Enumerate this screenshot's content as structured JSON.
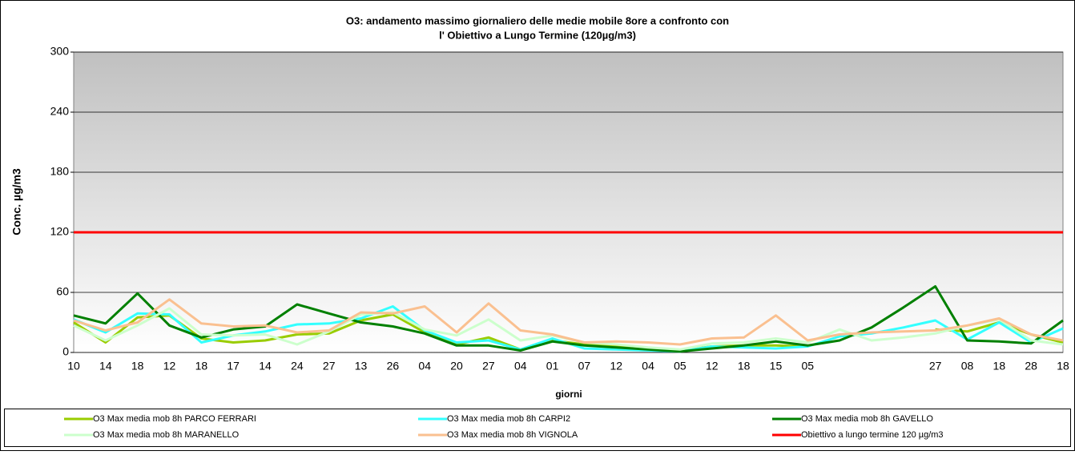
{
  "chart_data": {
    "type": "line",
    "title": [
      "O3: andamento massimo giornaliero delle medie mobile 8ore a confronto con",
      "l' Obiettivo a Lungo Termine  (120µg/m3)"
    ],
    "ylabel": "Conc. µg/m3",
    "xlabel": "giorni",
    "categories": [
      "10",
      "14",
      "18",
      "12",
      "18",
      "17",
      "14",
      "24",
      "27",
      "13",
      "26",
      "04",
      "20",
      "27",
      "04",
      "01",
      "07",
      "12",
      "04",
      "05",
      "12",
      "18",
      "15",
      "05",
      null,
      null,
      null,
      "27",
      "08",
      "18",
      "28",
      "18"
    ],
    "ylim": [
      0,
      300
    ],
    "yticks": [
      0,
      60,
      120,
      180,
      240,
      300
    ],
    "grid": true,
    "series": [
      {
        "name": "O3 Max media mob 8h  PARCO FERRARI",
        "color": "#99cc00",
        "values": [
          30,
          10,
          35,
          37,
          14,
          10,
          12,
          18,
          19,
          32,
          38,
          20,
          8,
          15,
          3,
          12,
          8,
          7,
          4,
          2,
          6,
          7,
          7,
          6,
          null,
          null,
          null,
          23,
          21,
          30,
          18,
          10
        ]
      },
      {
        "name": "O3 Max media mob 8h  CARPI2",
        "color": "#33ffff",
        "values": [
          33,
          20,
          39,
          38,
          10,
          17,
          21,
          28,
          29,
          34,
          46,
          22,
          10,
          12,
          3,
          14,
          4,
          3,
          2,
          1,
          6,
          5,
          4,
          6,
          16,
          19,
          25,
          32,
          13,
          30,
          10,
          24
        ]
      },
      {
        "name": "O3 Max media mob 8h  GAVELLO",
        "color": "#008000",
        "values": [
          37,
          29,
          59,
          27,
          15,
          23,
          26,
          48,
          39,
          30,
          26,
          19,
          7,
          7,
          2,
          11,
          7,
          5,
          3,
          1,
          4,
          7,
          11,
          7,
          12,
          25,
          45,
          66,
          12,
          11,
          9,
          32
        ]
      },
      {
        "name": "O3 Max media mob 8h  MARANELLO",
        "color": "#ccffcc",
        "values": [
          27,
          12,
          27,
          44,
          18,
          17,
          18,
          8,
          21,
          38,
          40,
          23,
          17,
          33,
          12,
          17,
          10,
          8,
          5,
          3,
          9,
          10,
          14,
          10,
          23,
          12,
          15,
          19,
          27,
          33,
          12,
          8
        ]
      },
      {
        "name": "O3 Max media mob 8h  VIGNOLA",
        "color": "#fac090",
        "values": [
          32,
          22,
          30,
          53,
          29,
          26,
          27,
          20,
          22,
          40,
          39,
          46,
          20,
          49,
          22,
          18,
          10,
          11,
          10,
          8,
          14,
          15,
          37,
          12,
          18,
          20,
          21,
          22,
          27,
          34,
          18,
          12
        ]
      },
      {
        "name": "Obiettivo  a lungo termine 120 µg/m3",
        "color": "#ff0000",
        "values": [
          120,
          120,
          120,
          120,
          120,
          120,
          120,
          120,
          120,
          120,
          120,
          120,
          120,
          120,
          120,
          120,
          120,
          120,
          120,
          120,
          120,
          120,
          120,
          120,
          120,
          120,
          120,
          120,
          120,
          120,
          120,
          120
        ]
      }
    ]
  }
}
